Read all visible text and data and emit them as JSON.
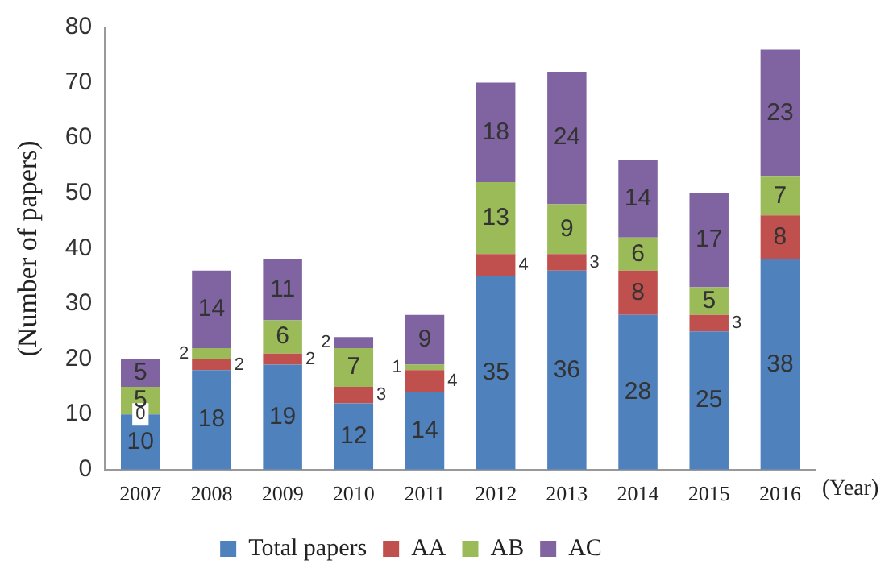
{
  "chart_data": {
    "type": "bar",
    "stacked": true,
    "xlabel": "(Year)",
    "ylabel": "(Number of papers)",
    "categories": [
      "2007",
      "2008",
      "2009",
      "2010",
      "2011",
      "2012",
      "2013",
      "2014",
      "2015",
      "2016"
    ],
    "series": [
      {
        "name": "Total papers",
        "color": "#4f81bd",
        "values": [
          10,
          18,
          19,
          12,
          14,
          35,
          36,
          28,
          25,
          38
        ]
      },
      {
        "name": "AA",
        "color": "#c0504d",
        "values": [
          0,
          2,
          2,
          3,
          4,
          4,
          3,
          8,
          3,
          8
        ]
      },
      {
        "name": "AB",
        "color": "#9bbb59",
        "values": [
          5,
          2,
          6,
          7,
          1,
          13,
          9,
          6,
          5,
          7
        ]
      },
      {
        "name": "AC",
        "color": "#8064a2",
        "values": [
          5,
          14,
          11,
          2,
          9,
          18,
          24,
          14,
          17,
          23
        ]
      }
    ],
    "ylim": [
      0,
      80
    ],
    "yticks": [
      0,
      10,
      20,
      30,
      40,
      50,
      60,
      70,
      80
    ],
    "grid": false,
    "legend": "bottom",
    "data_labels": true
  }
}
